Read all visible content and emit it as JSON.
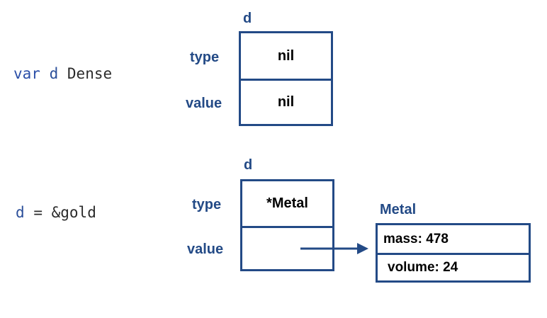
{
  "diagram": {
    "top": {
      "code": {
        "keyword": "var",
        "ident": "d",
        "type": "Dense"
      },
      "title": "d",
      "type_label": "type",
      "value_label": "value",
      "type_value": "nil",
      "value_value": "nil"
    },
    "bottom": {
      "code": {
        "ident": "d",
        "operator": "=",
        "expr": "&gold"
      },
      "title": "d",
      "type_label": "type",
      "value_label": "value",
      "type_value": "*Metal",
      "value_value": ""
    },
    "metal": {
      "title": "Metal",
      "fields": [
        "mass: 478",
        "volume: 24"
      ]
    },
    "colors": {
      "border": "#234a86",
      "label": "#234a86",
      "keyword": "#2b4fa8",
      "text": "#000000"
    }
  }
}
